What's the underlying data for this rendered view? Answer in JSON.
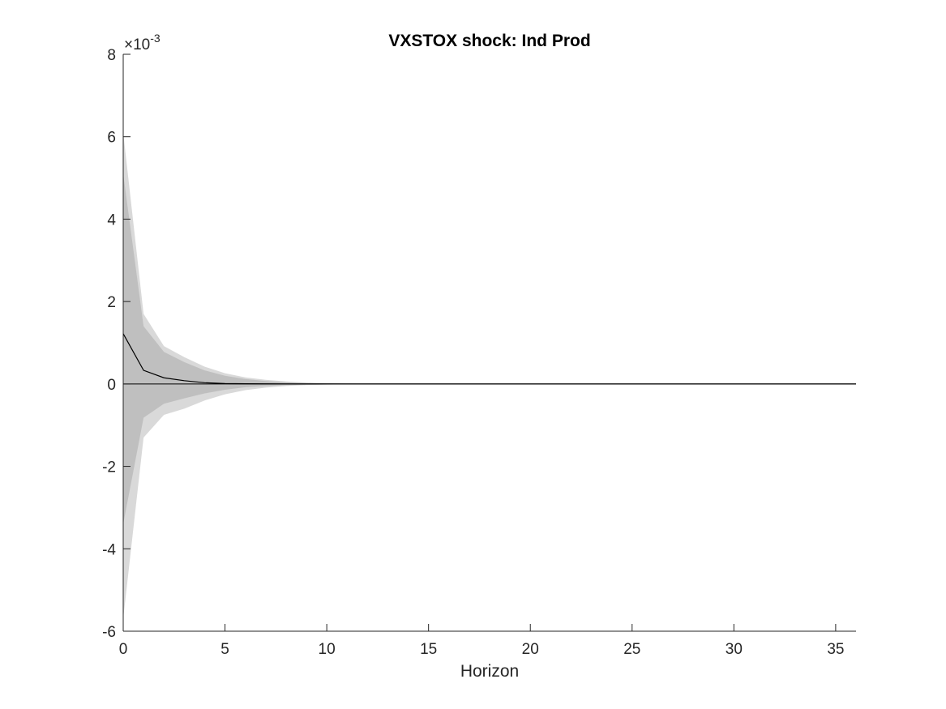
{
  "chart_data": {
    "type": "area",
    "title": "VXSTOX shock: Ind Prod",
    "xlabel": "Horizon",
    "ylabel": "",
    "xlim": [
      0,
      36
    ],
    "ylim": [
      -0.006,
      0.008
    ],
    "y_exponent": {
      "base": "×10",
      "power": "-3"
    },
    "x_ticks": [
      0,
      5,
      10,
      15,
      20,
      25,
      30,
      35
    ],
    "x_tick_labels": [
      "0",
      "5",
      "10",
      "15",
      "20",
      "25",
      "30",
      "35"
    ],
    "y_ticks": [
      -0.006,
      -0.004,
      -0.002,
      0,
      0.002,
      0.004,
      0.006,
      0.008
    ],
    "y_tick_labels": [
      "-6",
      "-4",
      "-2",
      "0",
      "2",
      "4",
      "6",
      "8"
    ],
    "grid": false,
    "legend": "none",
    "x": [
      0,
      1,
      2,
      3,
      4,
      5,
      6,
      7,
      8,
      9,
      10,
      11,
      12,
      13,
      14,
      15,
      16,
      17,
      18,
      19,
      20,
      21,
      22,
      23,
      24,
      25,
      26,
      27,
      28,
      29,
      30,
      31,
      32,
      33,
      34,
      35,
      36
    ],
    "bands": [
      {
        "role": "outer",
        "color": "#d9d9d9",
        "upper": [
          0.0061,
          0.0017,
          0.00092,
          0.00065,
          0.00042,
          0.00026,
          0.00016,
          0.0001,
          6e-05,
          3.5e-05,
          2e-05,
          1e-05,
          5e-06,
          2e-06,
          0,
          0,
          0,
          0,
          0,
          0,
          0,
          0,
          0,
          0,
          0,
          0,
          0,
          0,
          0,
          0,
          0,
          0,
          0,
          0,
          0,
          0,
          0
        ],
        "lower": [
          -0.0057,
          -0.0013,
          -0.00075,
          -0.0006,
          -0.0004,
          -0.00025,
          -0.00015,
          -9e-05,
          -5e-05,
          -3e-05,
          -1.5e-05,
          -8e-06,
          -4e-06,
          -2e-06,
          0,
          0,
          0,
          0,
          0,
          0,
          0,
          0,
          0,
          0,
          0,
          0,
          0,
          0,
          0,
          0,
          0,
          0,
          0,
          0,
          0,
          0,
          0
        ]
      },
      {
        "role": "inner",
        "color": "#bfbfbf",
        "upper": [
          0.0051,
          0.0014,
          0.00078,
          0.00053,
          0.00033,
          0.0002,
          0.00012,
          7e-05,
          4e-05,
          2.2e-05,
          1.2e-05,
          6e-06,
          3e-06,
          1e-06,
          0,
          0,
          0,
          0,
          0,
          0,
          0,
          0,
          0,
          0,
          0,
          0,
          0,
          0,
          0,
          0,
          0,
          0,
          0,
          0,
          0,
          0,
          0
        ],
        "lower": [
          -0.0034,
          -0.00082,
          -0.00048,
          -0.00035,
          -0.00023,
          -0.00014,
          -8e-05,
          -5e-05,
          -3e-05,
          -1.6e-05,
          -8e-06,
          -4e-06,
          -2e-06,
          -1e-06,
          0,
          0,
          0,
          0,
          0,
          0,
          0,
          0,
          0,
          0,
          0,
          0,
          0,
          0,
          0,
          0,
          0,
          0,
          0,
          0,
          0,
          0,
          0
        ]
      }
    ],
    "series": [
      {
        "color": "#000000",
        "values": [
          0.00122,
          0.00033,
          0.00015,
          8e-05,
          3e-05,
          1e-05,
          5e-06,
          2e-06,
          1e-06,
          0,
          0,
          0,
          0,
          0,
          0,
          0,
          0,
          0,
          0,
          0,
          0,
          0,
          0,
          0,
          0,
          0,
          0,
          0,
          0,
          0,
          0,
          0,
          0,
          0,
          0,
          0,
          0
        ]
      }
    ],
    "zero_line": {
      "y": 0,
      "color": "#000000"
    },
    "axis_color": "#262626"
  }
}
